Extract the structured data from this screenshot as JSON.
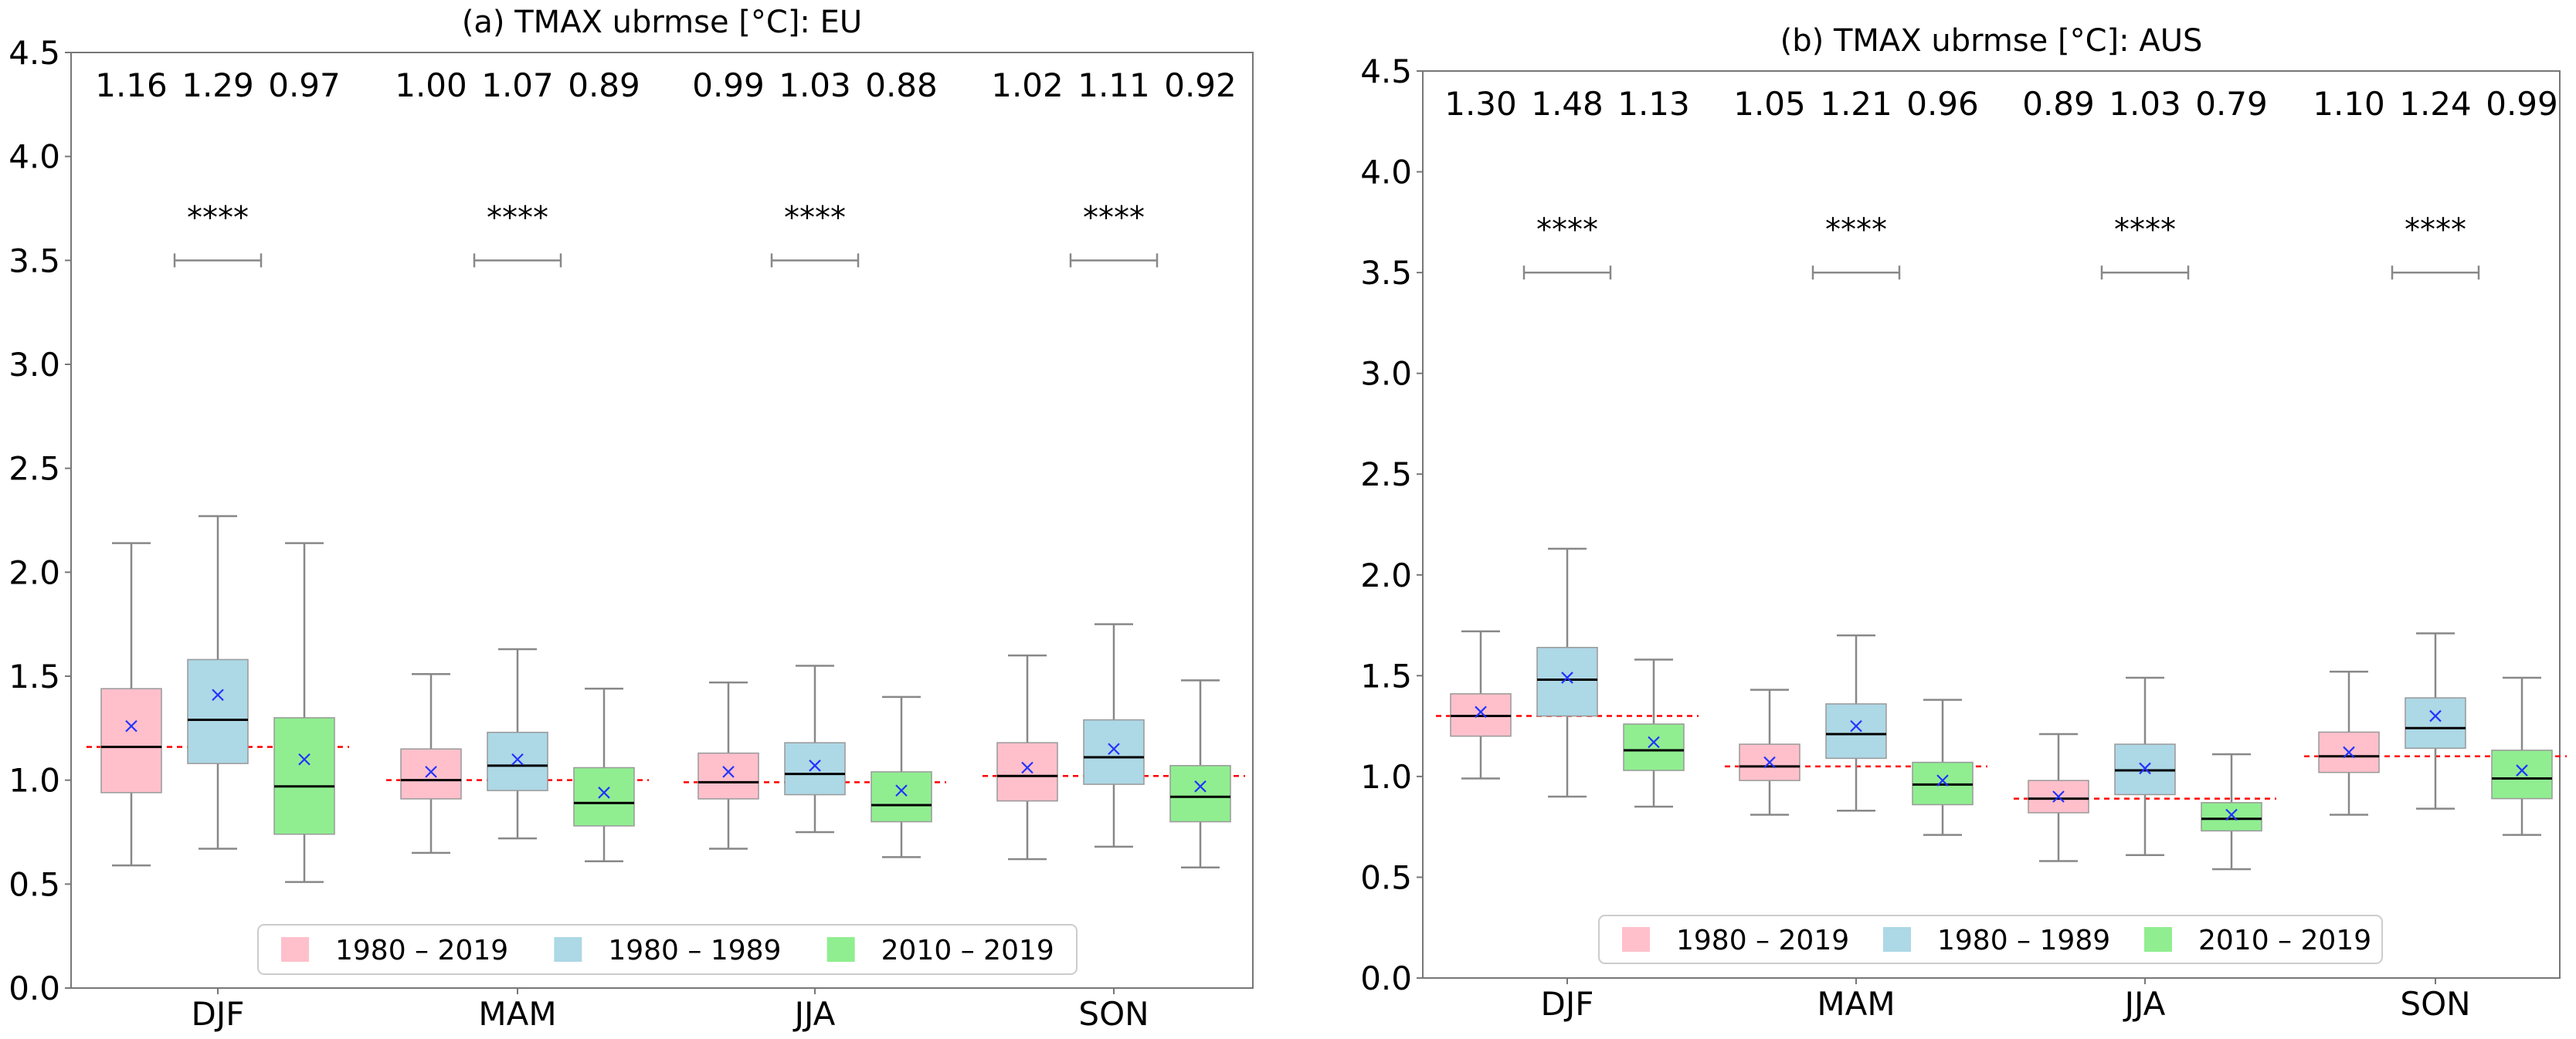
{
  "chart_data": [
    {
      "type": "box",
      "title": "(a) TMAX ubrmse [°C]: EU",
      "xlabel": "",
      "ylabel": "",
      "ylim": [
        0.0,
        4.5
      ],
      "yticks": [
        0.0,
        0.5,
        1.0,
        1.5,
        2.0,
        2.5,
        3.0,
        3.5,
        4.0,
        4.5
      ],
      "ytick_labels": [
        "0.0",
        "0.5",
        "1.0",
        "1.5",
        "2.0",
        "2.5",
        "3.0",
        "3.5",
        "4.0",
        "4.5"
      ],
      "grid": false,
      "legend_position": "bottom-center",
      "categories": [
        "DJF",
        "MAM",
        "JJA",
        "SON"
      ],
      "series": [
        {
          "name": "1980 – 2019",
          "color": "#ffc0cb",
          "means": [
            1.16,
            1.0,
            0.99,
            1.02
          ],
          "mean_labels": [
            "1.16",
            "1.00",
            "0.99",
            "1.02"
          ],
          "boxes": [
            {
              "whislo": 0.59,
              "q1": 0.94,
              "med": 1.16,
              "q3": 1.44,
              "whishi": 2.14,
              "mean": 1.26
            },
            {
              "whislo": 0.65,
              "q1": 0.91,
              "med": 1.0,
              "q3": 1.15,
              "whishi": 1.51,
              "mean": 1.04
            },
            {
              "whislo": 0.67,
              "q1": 0.91,
              "med": 0.99,
              "q3": 1.13,
              "whishi": 1.47,
              "mean": 1.04
            },
            {
              "whislo": 0.62,
              "q1": 0.9,
              "med": 1.02,
              "q3": 1.18,
              "whishi": 1.6,
              "mean": 1.06
            }
          ]
        },
        {
          "name": "1980 – 1989",
          "color": "#add8e6",
          "means": [
            1.29,
            1.07,
            1.03,
            1.11
          ],
          "mean_labels": [
            "1.29",
            "1.07",
            "1.03",
            "1.11"
          ],
          "boxes": [
            {
              "whislo": 0.67,
              "q1": 1.08,
              "med": 1.29,
              "q3": 1.58,
              "whishi": 2.27,
              "mean": 1.41
            },
            {
              "whislo": 0.72,
              "q1": 0.95,
              "med": 1.07,
              "q3": 1.23,
              "whishi": 1.63,
              "mean": 1.1
            },
            {
              "whislo": 0.75,
              "q1": 0.93,
              "med": 1.03,
              "q3": 1.18,
              "whishi": 1.55,
              "mean": 1.07
            },
            {
              "whislo": 0.68,
              "q1": 0.98,
              "med": 1.11,
              "q3": 1.29,
              "whishi": 1.75,
              "mean": 1.15
            }
          ]
        },
        {
          "name": "2010 – 2019",
          "color": "#90ee90",
          "means": [
            0.97,
            0.89,
            0.88,
            0.92
          ],
          "mean_labels": [
            "0.97",
            "0.89",
            "0.88",
            "0.92"
          ],
          "boxes": [
            {
              "whislo": 0.51,
              "q1": 0.74,
              "med": 0.97,
              "q3": 1.3,
              "whishi": 2.14,
              "mean": 1.1
            },
            {
              "whislo": 0.61,
              "q1": 0.78,
              "med": 0.89,
              "q3": 1.06,
              "whishi": 1.44,
              "mean": 0.94
            },
            {
              "whislo": 0.63,
              "q1": 0.8,
              "med": 0.88,
              "q3": 1.04,
              "whishi": 1.4,
              "mean": 0.95
            },
            {
              "whislo": 0.58,
              "q1": 0.8,
              "med": 0.92,
              "q3": 1.07,
              "whishi": 1.48,
              "mean": 0.97
            }
          ]
        }
      ],
      "reference_lines": [
        1.16,
        1.0,
        0.99,
        1.02
      ],
      "significance": [
        {
          "category": "DJF",
          "label": "****",
          "y": 3.5
        },
        {
          "category": "MAM",
          "label": "****",
          "y": 3.5
        },
        {
          "category": "JJA",
          "label": "****",
          "y": 3.5
        },
        {
          "category": "SON",
          "label": "****",
          "y": 3.5
        }
      ]
    },
    {
      "type": "box",
      "title": "(b) TMAX ubrmse [°C]: AUS",
      "xlabel": "",
      "ylabel": "",
      "ylim": [
        0.0,
        4.5
      ],
      "yticks": [
        0.0,
        0.5,
        1.0,
        1.5,
        2.0,
        2.5,
        3.0,
        3.5,
        4.0,
        4.5
      ],
      "ytick_labels": [
        "0.0",
        "0.5",
        "1.0",
        "1.5",
        "2.0",
        "2.5",
        "3.0",
        "3.5",
        "4.0",
        "4.5"
      ],
      "grid": false,
      "legend_position": "bottom-center",
      "categories": [
        "DJF",
        "MAM",
        "JJA",
        "SON"
      ],
      "series": [
        {
          "name": "1980 – 2019",
          "color": "#ffc0cb",
          "means": [
            1.3,
            1.05,
            0.89,
            1.1
          ],
          "mean_labels": [
            "1.30",
            "1.05",
            "0.89",
            "1.10"
          ],
          "boxes": [
            {
              "whislo": 0.99,
              "q1": 1.2,
              "med": 1.3,
              "q3": 1.41,
              "whishi": 1.72,
              "mean": 1.32
            },
            {
              "whislo": 0.81,
              "q1": 0.98,
              "med": 1.05,
              "q3": 1.16,
              "whishi": 1.43,
              "mean": 1.07
            },
            {
              "whislo": 0.58,
              "q1": 0.82,
              "med": 0.89,
              "q3": 0.98,
              "whishi": 1.21,
              "mean": 0.9
            },
            {
              "whislo": 0.81,
              "q1": 1.02,
              "med": 1.1,
              "q3": 1.22,
              "whishi": 1.52,
              "mean": 1.12
            }
          ]
        },
        {
          "name": "1980 – 1989",
          "color": "#add8e6",
          "means": [
            1.48,
            1.21,
            1.03,
            1.24
          ],
          "mean_labels": [
            "1.48",
            "1.21",
            "1.03",
            "1.24"
          ],
          "boxes": [
            {
              "whislo": 0.9,
              "q1": 1.3,
              "med": 1.48,
              "q3": 1.64,
              "whishi": 2.13,
              "mean": 1.49
            },
            {
              "whislo": 0.83,
              "q1": 1.09,
              "med": 1.21,
              "q3": 1.36,
              "whishi": 1.7,
              "mean": 1.25
            },
            {
              "whislo": 0.61,
              "q1": 0.91,
              "med": 1.03,
              "q3": 1.16,
              "whishi": 1.49,
              "mean": 1.04
            },
            {
              "whislo": 0.84,
              "q1": 1.14,
              "med": 1.24,
              "q3": 1.39,
              "whishi": 1.71,
              "mean": 1.3
            }
          ]
        },
        {
          "name": "2010 – 2019",
          "color": "#90ee90",
          "means": [
            1.13,
            0.96,
            0.79,
            0.99
          ],
          "mean_labels": [
            "1.13",
            "0.96",
            "0.79",
            "0.99"
          ],
          "boxes": [
            {
              "whislo": 0.85,
              "q1": 1.03,
              "med": 1.13,
              "q3": 1.26,
              "whishi": 1.58,
              "mean": 1.17
            },
            {
              "whislo": 0.71,
              "q1": 0.86,
              "med": 0.96,
              "q3": 1.07,
              "whishi": 1.38,
              "mean": 0.98
            },
            {
              "whislo": 0.54,
              "q1": 0.73,
              "med": 0.79,
              "q3": 0.87,
              "whishi": 1.11,
              "mean": 0.81
            },
            {
              "whislo": 0.71,
              "q1": 0.89,
              "med": 0.99,
              "q3": 1.13,
              "whishi": 1.49,
              "mean": 1.03
            }
          ]
        }
      ],
      "reference_lines": [
        1.3,
        1.05,
        0.89,
        1.1
      ],
      "significance": [
        {
          "category": "DJF",
          "label": "****",
          "y": 3.5
        },
        {
          "category": "MAM",
          "label": "****",
          "y": 3.5
        },
        {
          "category": "JJA",
          "label": "****",
          "y": 3.5
        },
        {
          "category": "SON",
          "label": "****",
          "y": 3.5
        }
      ]
    }
  ],
  "colors": {
    "axis": "#777777",
    "whisker": "#888888",
    "box_edge": "#999999",
    "median": "#000000",
    "mean_marker": "#2233ff",
    "reference_line": "#ff0000"
  }
}
